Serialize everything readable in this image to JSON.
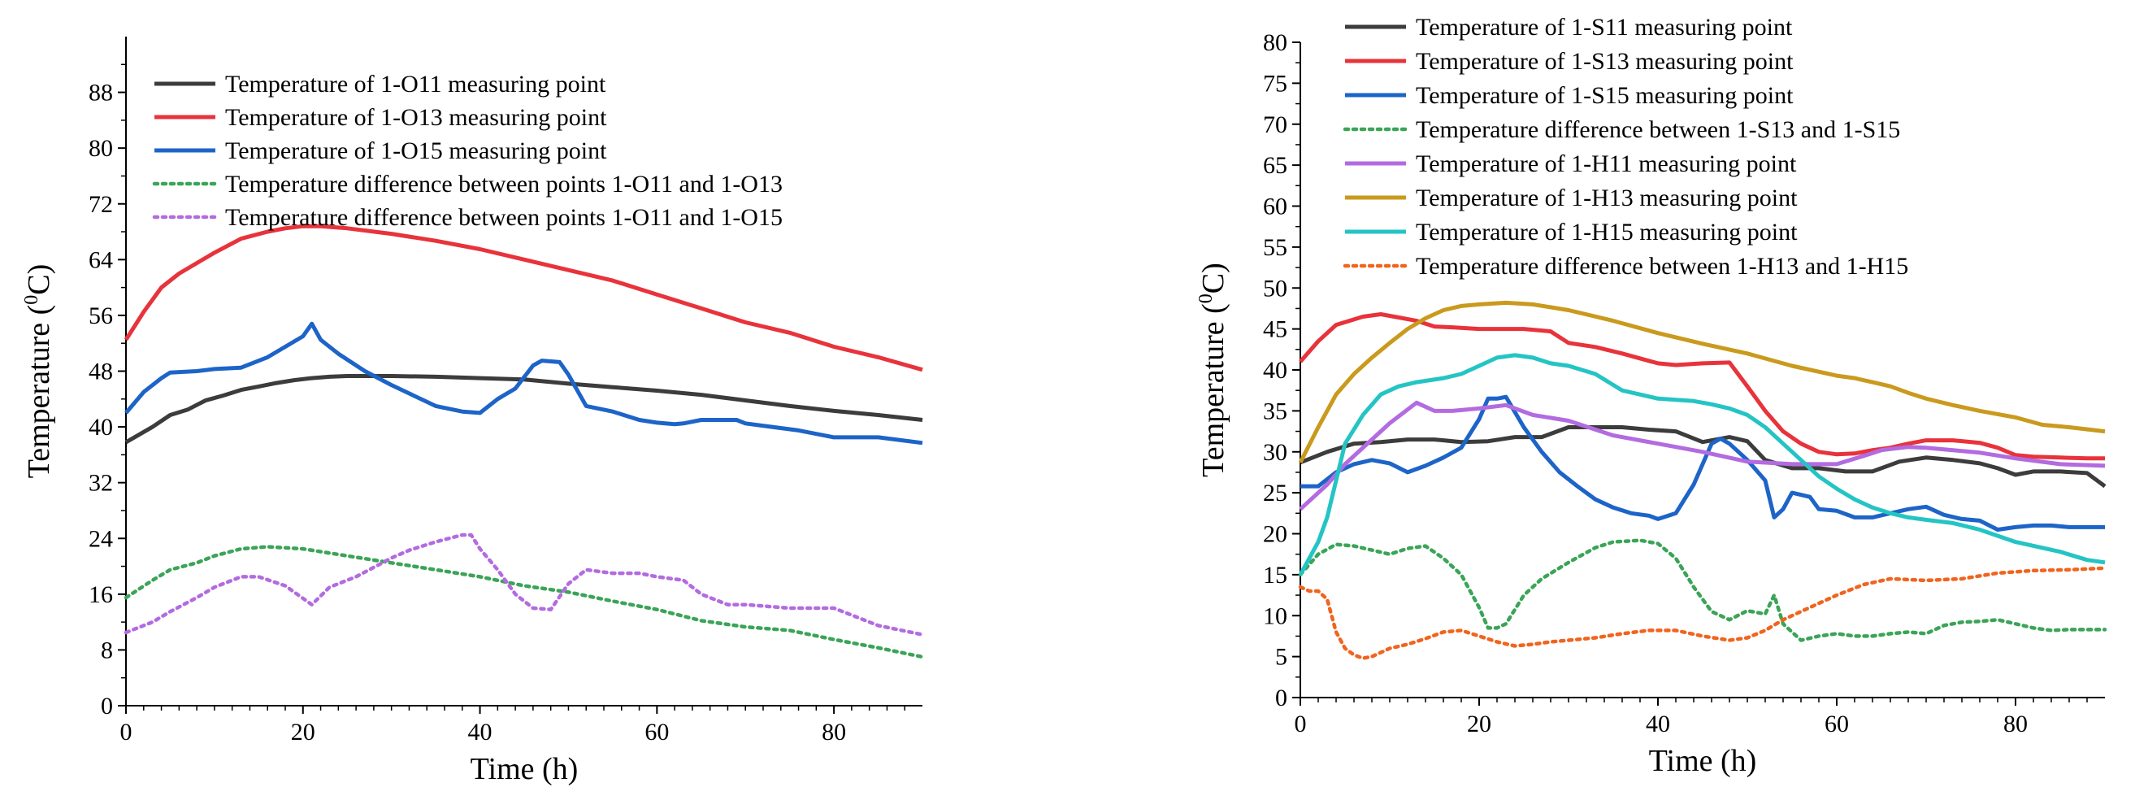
{
  "chart_data": [
    {
      "type": "line",
      "xlabel": "Time (h)",
      "ylabel": "Temperature (",
      "ylabel_sup": "0",
      "ylabel_end": "C)",
      "xlim": [
        0,
        90
      ],
      "ylim": [
        0,
        96
      ],
      "xticks": [
        0,
        20,
        40,
        60,
        80
      ],
      "yticks": [
        0,
        8,
        16,
        24,
        32,
        40,
        48,
        56,
        64,
        72,
        80,
        88
      ],
      "legend": "top-left",
      "series": [
        {
          "name": "Temperature of 1-O11 measuring point",
          "color": "#3c3c3c",
          "style": "solid",
          "x": [
            0,
            3,
            5,
            7,
            9,
            11,
            13,
            15,
            17,
            19,
            21,
            23,
            25,
            30,
            35,
            40,
            45,
            50,
            55,
            60,
            65,
            70,
            75,
            80,
            85,
            90
          ],
          "y": [
            37.8,
            40,
            41.7,
            42.5,
            43.8,
            44.5,
            45.3,
            45.8,
            46.3,
            46.7,
            47,
            47.2,
            47.3,
            47.3,
            47.2,
            47,
            46.8,
            46.2,
            45.7,
            45.2,
            44.6,
            43.8,
            43,
            42.3,
            41.7,
            41
          ]
        },
        {
          "name": "Temperature of 1-O13 measuring point",
          "color": "#e8333b",
          "style": "solid",
          "x": [
            0,
            2,
            4,
            6,
            8,
            10,
            13,
            16,
            18,
            20,
            22,
            25,
            30,
            35,
            40,
            45,
            50,
            55,
            60,
            65,
            70,
            75,
            80,
            85,
            90
          ],
          "y": [
            52.5,
            56.5,
            60,
            62,
            63.5,
            65,
            67,
            68,
            68.5,
            68.8,
            68.8,
            68.5,
            67.7,
            66.7,
            65.5,
            64,
            62.5,
            61,
            59,
            57,
            55,
            53.5,
            51.5,
            50,
            48.2
          ]
        },
        {
          "name": "Temperature of 1-O15 measuring point",
          "color": "#1d64c8",
          "style": "solid",
          "x": [
            0,
            2,
            4,
            5,
            8,
            10,
            13,
            16,
            18,
            20,
            21,
            22,
            24,
            27,
            30,
            32,
            35,
            38,
            40,
            42,
            44,
            46,
            47,
            49,
            50,
            52,
            55,
            58,
            60,
            62,
            63,
            65,
            67,
            69,
            70,
            73,
            76,
            80,
            85,
            90
          ],
          "y": [
            42,
            45,
            47,
            47.8,
            48,
            48.3,
            48.5,
            50,
            51.5,
            53,
            54.8,
            52.5,
            50.5,
            48,
            46,
            44.8,
            43,
            42.2,
            42,
            44,
            45.5,
            48.8,
            49.5,
            49.3,
            47.5,
            43,
            42.2,
            41,
            40.6,
            40.4,
            40.5,
            41,
            41,
            41,
            40.5,
            40,
            39.5,
            38.5,
            38.5,
            37.7
          ]
        },
        {
          "name": "Temperature difference between points 1-O11 and 1-O13",
          "color": "#3aa457",
          "style": "dotted",
          "x": [
            0,
            3,
            5,
            8,
            10,
            13,
            16,
            20,
            25,
            30,
            35,
            40,
            45,
            50,
            55,
            60,
            65,
            70,
            75,
            80,
            85,
            90
          ],
          "y": [
            15.5,
            18,
            19.5,
            20.5,
            21.5,
            22.5,
            22.8,
            22.5,
            21.5,
            20.5,
            19.5,
            18.5,
            17.2,
            16.3,
            15,
            13.8,
            12.2,
            11.3,
            10.8,
            9.5,
            8.3,
            7
          ]
        },
        {
          "name": "Temperature difference between points 1-O11 and 1-O15",
          "color": "#b36be0",
          "style": "dotted",
          "x": [
            0,
            3,
            5,
            8,
            10,
            13,
            15,
            18,
            21,
            23,
            26,
            30,
            32,
            35,
            38,
            39,
            40,
            42,
            44,
            46,
            48,
            50,
            52,
            55,
            58,
            60,
            63,
            65,
            68,
            70,
            75,
            80,
            85,
            90
          ],
          "y": [
            10.5,
            12,
            13.5,
            15.5,
            17,
            18.5,
            18.5,
            17.2,
            14.5,
            17,
            18.5,
            21.2,
            22.3,
            23.5,
            24.5,
            24.5,
            22.5,
            19.5,
            16,
            14,
            13.8,
            17.5,
            19.5,
            19,
            19,
            18.5,
            18,
            16,
            14.5,
            14.5,
            14,
            14,
            11.5,
            10.2
          ]
        }
      ]
    },
    {
      "type": "line",
      "xlabel": "Time (h)",
      "ylabel": "Temperature (",
      "ylabel_sup": "0",
      "ylabel_end": "C)",
      "xlim": [
        0,
        90
      ],
      "ylim": [
        0,
        80
      ],
      "xticks": [
        0,
        20,
        40,
        60,
        80
      ],
      "yticks": [
        0,
        5,
        10,
        15,
        20,
        25,
        30,
        35,
        40,
        45,
        50,
        55,
        60,
        65,
        70,
        75,
        80
      ],
      "legend": "top",
      "series": [
        {
          "name": "Temperature of 1-S11 measuring point",
          "color": "#3c3c3c",
          "style": "solid",
          "x": [
            0,
            3,
            6,
            9,
            12,
            15,
            18,
            21,
            24,
            27,
            30,
            33,
            36,
            39,
            42,
            45,
            48,
            50,
            52,
            55,
            58,
            61,
            64,
            67,
            70,
            73,
            76,
            78,
            80,
            82,
            85,
            88,
            90
          ],
          "y": [
            28.7,
            30,
            31,
            31.2,
            31.5,
            31.5,
            31.2,
            31.3,
            31.8,
            31.8,
            33,
            33,
            33,
            32.7,
            32.5,
            31.2,
            31.8,
            31.3,
            29,
            28,
            28,
            27.6,
            27.6,
            28.8,
            29.3,
            29,
            28.6,
            28,
            27.2,
            27.6,
            27.6,
            27.4,
            25.8
          ]
        },
        {
          "name": "Temperature of 1-S13 measuring point",
          "color": "#e8333b",
          "style": "solid",
          "x": [
            0,
            2,
            4,
            7,
            9,
            11,
            13,
            15,
            17,
            20,
            25,
            28,
            30,
            33,
            36,
            40,
            42,
            45,
            48,
            50,
            52,
            54,
            56,
            58,
            60,
            62,
            64,
            66,
            68,
            70,
            73,
            76,
            78,
            80,
            82,
            85,
            88,
            90
          ],
          "y": [
            41,
            43.5,
            45.5,
            46.5,
            46.8,
            46.4,
            46,
            45.3,
            45.2,
            45,
            45,
            44.7,
            43.3,
            42.8,
            42,
            40.8,
            40.6,
            40.8,
            40.9,
            38,
            35,
            32.5,
            31,
            30,
            29.7,
            29.8,
            30.2,
            30.5,
            31,
            31.4,
            31.4,
            31.1,
            30.5,
            29.6,
            29.4,
            29.3,
            29.2,
            29.2
          ]
        },
        {
          "name": "Temperature of 1-S15 measuring point",
          "color": "#1d64c8",
          "style": "solid",
          "x": [
            0,
            2,
            4,
            6,
            8,
            10,
            12,
            14,
            16,
            18,
            20,
            21,
            22,
            23,
            25,
            27,
            29,
            31,
            33,
            35,
            37,
            39,
            40,
            42,
            44,
            46,
            47,
            48,
            50,
            52,
            53,
            54,
            55,
            57,
            58,
            60,
            62,
            64,
            66,
            68,
            70,
            72,
            74,
            76,
            78,
            80,
            82,
            84,
            86,
            88,
            90
          ],
          "y": [
            25.8,
            25.8,
            27.5,
            28.5,
            29,
            28.6,
            27.5,
            28.3,
            29.3,
            30.5,
            34,
            36.5,
            36.5,
            36.7,
            33,
            30,
            27.5,
            25.8,
            24.2,
            23.2,
            22.5,
            22.2,
            21.8,
            22.5,
            26,
            31,
            31.6,
            31,
            29,
            26.5,
            22,
            23,
            25,
            24.5,
            23,
            22.8,
            22,
            22,
            22.5,
            23,
            23.3,
            22.3,
            21.8,
            21.6,
            20.5,
            20.8,
            21,
            21,
            20.8,
            20.8,
            20.8
          ]
        },
        {
          "name": "Temperature difference between 1-S13 and 1-S15",
          "color": "#3aa457",
          "style": "dotted",
          "x": [
            0,
            2,
            4,
            6,
            8,
            10,
            12,
            14,
            16,
            18,
            20,
            21,
            22,
            23,
            25,
            27,
            30,
            33,
            35,
            38,
            40,
            42,
            44,
            46,
            48,
            50,
            52,
            53,
            54,
            56,
            58,
            60,
            62,
            64,
            66,
            68,
            70,
            72,
            74,
            76,
            78,
            80,
            82,
            84,
            86,
            88,
            90
          ],
          "y": [
            15,
            17.5,
            18.7,
            18.5,
            18,
            17.5,
            18.2,
            18.5,
            17,
            15,
            11,
            8.5,
            8.5,
            9,
            12.5,
            14.5,
            16.5,
            18.3,
            19,
            19.2,
            18.8,
            17,
            13.5,
            10.5,
            9.5,
            10.6,
            10.2,
            12.5,
            9,
            7,
            7.5,
            7.8,
            7.5,
            7.5,
            7.8,
            8,
            7.8,
            8.8,
            9.2,
            9.3,
            9.5,
            9,
            8.5,
            8.2,
            8.3,
            8.3,
            8.3
          ]
        },
        {
          "name": "Temperature of 1-H11 measuring point",
          "color": "#b36be0",
          "style": "solid",
          "x": [
            0,
            3,
            5,
            8,
            10,
            13,
            15,
            17,
            20,
            23,
            26,
            30,
            35,
            40,
            45,
            50,
            55,
            60,
            63,
            65,
            68,
            70,
            73,
            76,
            80,
            85,
            90
          ],
          "y": [
            23,
            26,
            28.5,
            31.5,
            33.5,
            36,
            35,
            35,
            35.3,
            35.7,
            34.5,
            33.8,
            32,
            31,
            30,
            28.8,
            28.5,
            28.5,
            29.5,
            30.2,
            30.6,
            30.5,
            30.2,
            29.9,
            29.2,
            28.5,
            28.3
          ]
        },
        {
          "name": "Temperature of 1-H13 measuring point",
          "color": "#c99a1d",
          "style": "solid",
          "x": [
            0,
            2,
            4,
            6,
            8,
            10,
            12,
            14,
            16,
            18,
            20,
            23,
            26,
            30,
            35,
            40,
            45,
            50,
            55,
            60,
            62,
            64,
            66,
            68,
            70,
            73,
            76,
            80,
            83,
            86,
            90
          ],
          "y": [
            28.7,
            33,
            37,
            39.5,
            41.5,
            43.3,
            45,
            46.3,
            47.3,
            47.8,
            48,
            48.2,
            48,
            47.3,
            46,
            44.5,
            43.2,
            42,
            40.5,
            39.3,
            39,
            38.5,
            38,
            37.2,
            36.5,
            35.7,
            35,
            34.2,
            33.3,
            33,
            32.5
          ]
        },
        {
          "name": "Temperature of 1-H15 measuring point",
          "color": "#25c4c4",
          "style": "solid",
          "x": [
            0,
            2,
            3,
            5,
            7,
            9,
            11,
            13,
            16,
            18,
            20,
            22,
            24,
            26,
            28,
            30,
            33,
            36,
            40,
            44,
            46,
            48,
            50,
            52,
            54,
            56,
            58,
            60,
            62,
            64,
            66,
            68,
            70,
            73,
            76,
            80,
            85,
            88,
            90
          ],
          "y": [
            15,
            19,
            22,
            31,
            34.5,
            37,
            38,
            38.5,
            39,
            39.5,
            40.5,
            41.5,
            41.8,
            41.5,
            40.8,
            40.5,
            39.5,
            37.5,
            36.5,
            36.2,
            35.8,
            35.3,
            34.5,
            33,
            31,
            29,
            27,
            25.5,
            24.2,
            23.2,
            22.5,
            22,
            21.7,
            21.3,
            20.5,
            19,
            17.8,
            16.8,
            16.5
          ]
        },
        {
          "name": "Temperature difference between 1-H13 and 1-H15",
          "color": "#f0641e",
          "style": "dotted",
          "x": [
            0,
            1,
            2,
            3,
            4,
            5,
            6,
            7,
            8,
            10,
            12,
            14,
            16,
            18,
            20,
            22,
            24,
            26,
            28,
            30,
            33,
            36,
            39,
            42,
            45,
            48,
            50,
            52,
            54,
            56,
            58,
            60,
            63,
            66,
            70,
            74,
            78,
            82,
            86,
            90
          ],
          "y": [
            13.5,
            13,
            13,
            12,
            8,
            6,
            5.2,
            4.8,
            5,
            6,
            6.5,
            7.2,
            8,
            8.2,
            7.5,
            6.8,
            6.3,
            6.5,
            6.8,
            7,
            7.3,
            7.8,
            8.2,
            8.2,
            7.5,
            7,
            7.3,
            8.2,
            9.5,
            10.5,
            11.5,
            12.5,
            13.8,
            14.5,
            14.3,
            14.5,
            15.2,
            15.5,
            15.6,
            15.8
          ]
        }
      ]
    }
  ]
}
